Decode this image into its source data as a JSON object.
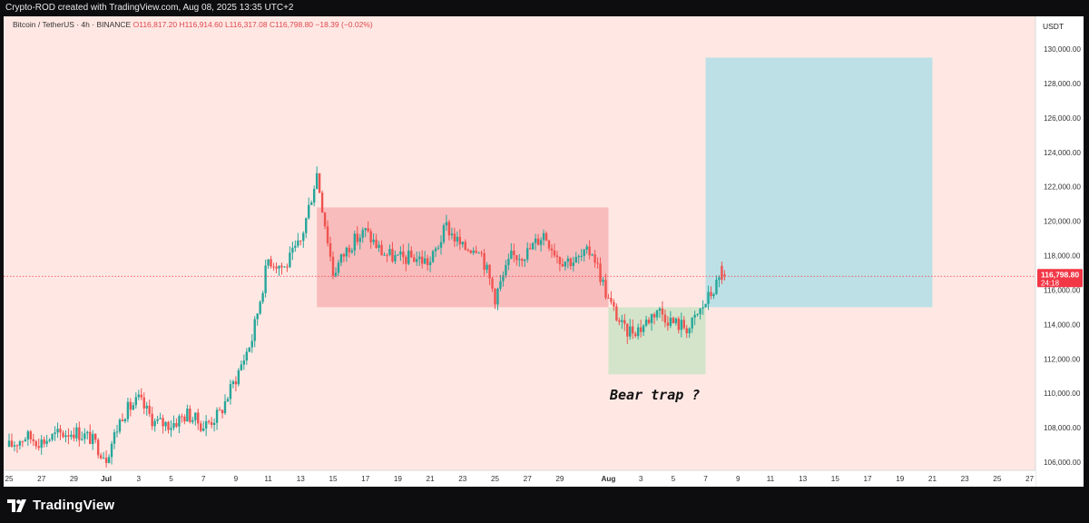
{
  "header": {
    "created_by": "Crypto-ROD created with TradingView.com, Aug 08, 2025 13:35 UTC+2"
  },
  "legend": {
    "symbol": "Bitcoin / TetherUS · 4h · BINANCE",
    "open": "O116,817.20",
    "high": "H116,914.60",
    "low": "L116,317.08",
    "close": "C116,798.80",
    "change": "−18.39 (−0.02%)"
  },
  "price_axis": {
    "currency": "USDT",
    "last_price_label": "116,798.80",
    "countdown_label": "24:18"
  },
  "annotation": {
    "text": "Bear trap ?"
  },
  "footer": {
    "brand": "TradingView"
  },
  "colors": {
    "background": "#ffe8e4",
    "up": "#26a69a",
    "down": "#ef5350",
    "range_box": "#f8b7b7",
    "trap_box": "#cfe3c6",
    "target_box": "#b5dfe4",
    "last_price": "#f23645"
  },
  "chart_data": {
    "type": "candlestick",
    "title": "Bitcoin / TetherUS · 4h · BINANCE",
    "ylabel": "USDT",
    "ylim": [
      105400,
      131800
    ],
    "x_ticks": [
      "25",
      "27",
      "29",
      "Jul",
      "3",
      "5",
      "7",
      "9",
      "11",
      "13",
      "15",
      "17",
      "19",
      "21",
      "23",
      "25",
      "27",
      "29",
      "Aug",
      "3",
      "5",
      "7",
      "9",
      "11",
      "13",
      "15",
      "17",
      "19",
      "21",
      "23",
      "25",
      "27"
    ],
    "y_ticks": [
      "106,000.00",
      "108,000.00",
      "110,000.00",
      "112,000.00",
      "114,000.00",
      "116,000.00",
      "118,000.00",
      "120,000.00",
      "122,000.00",
      "124,000.00",
      "126,000.00",
      "128,000.00",
      "130,000.00"
    ],
    "last_price": 116798.8,
    "price_path": [
      [
        "Jun 25",
        106900
      ],
      [
        "Jun 26",
        107500
      ],
      [
        "Jun 27",
        107200
      ],
      [
        "Jun 28",
        107600
      ],
      [
        "Jun 29",
        107800
      ],
      [
        "Jun 30",
        107400
      ],
      [
        "Jul 1",
        106300
      ],
      [
        "Jul 2",
        108800
      ],
      [
        "Jul 3",
        109600
      ],
      [
        "Jul 4",
        108300
      ],
      [
        "Jul 5",
        108200
      ],
      [
        "Jul 6",
        108800
      ],
      [
        "Jul 7",
        108100
      ],
      [
        "Jul 8",
        108800
      ],
      [
        "Jul 9",
        110900
      ],
      [
        "Jul 10",
        113200
      ],
      [
        "Jul 11",
        117800
      ],
      [
        "Jul 12",
        117300
      ],
      [
        "Jul 13",
        118800
      ],
      [
        "Jul 14",
        122800
      ],
      [
        "Jul 15",
        117000
      ],
      [
        "Jul 16",
        118600
      ],
      [
        "Jul 17",
        119400
      ],
      [
        "Jul 18",
        118200
      ],
      [
        "Jul 19",
        117800
      ],
      [
        "Jul 20",
        117900
      ],
      [
        "Jul 21",
        117600
      ],
      [
        "Jul 22",
        119700
      ],
      [
        "Jul 23",
        118400
      ],
      [
        "Jul 24",
        118600
      ],
      [
        "Jul 25",
        115600
      ],
      [
        "Jul 26",
        117900
      ],
      [
        "Jul 27",
        118200
      ],
      [
        "Jul 28",
        119300
      ],
      [
        "Jul 29",
        117800
      ],
      [
        "Jul 30",
        117700
      ],
      [
        "Jul 31",
        118300
      ],
      [
        "Aug 1",
        115400
      ],
      [
        "Aug 2",
        113600
      ],
      [
        "Aug 3",
        113800
      ],
      [
        "Aug 4",
        114900
      ],
      [
        "Aug 5",
        114100
      ],
      [
        "Aug 6",
        113800
      ],
      [
        "Aug 7",
        115300
      ],
      [
        "Aug 8",
        116799
      ]
    ],
    "boxes": [
      {
        "name": "consolidation range",
        "from": "Jul 14",
        "to": "Aug 1",
        "low": 115000,
        "high": 120800
      },
      {
        "name": "bear trap zone",
        "from": "Aug 1",
        "to": "Aug 7",
        "low": 111100,
        "high": 115000
      },
      {
        "name": "target zone",
        "from": "Aug 7",
        "to": "Aug 21",
        "low": 115000,
        "high": 129500
      }
    ]
  }
}
